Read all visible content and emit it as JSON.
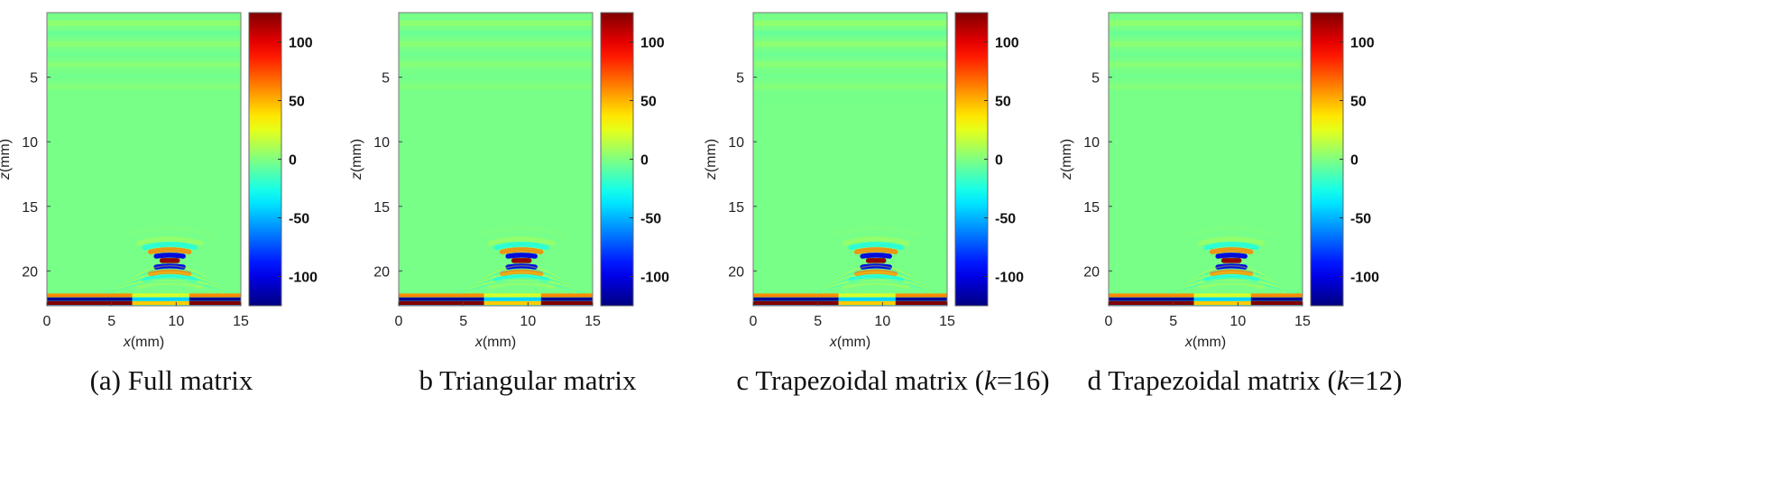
{
  "chart_data": [
    {
      "type": "heatmap",
      "caption": "(a) Full matrix",
      "xlabel": "x(mm)",
      "ylabel": "z(mm)",
      "xlim": [
        0,
        15
      ],
      "ylim": [
        0,
        22.7
      ],
      "x_ticks": [
        0,
        5,
        10,
        15
      ],
      "y_ticks": [
        5,
        10,
        15,
        20
      ],
      "colorbar": {
        "range": [
          -125,
          125
        ],
        "ticks": [
          100,
          50,
          0,
          -50,
          -100
        ],
        "colormap": "jet"
      },
      "features": {
        "defect_x": 9.5,
        "defect_z": 19.2,
        "backwall_z": 22.3,
        "noise_level": 1.0
      }
    },
    {
      "type": "heatmap",
      "caption": "b  Triangular matrix",
      "xlabel": "x(mm)",
      "ylabel": "z(mm)",
      "xlim": [
        0,
        15
      ],
      "ylim": [
        0,
        22.7
      ],
      "x_ticks": [
        0,
        5,
        10,
        15
      ],
      "y_ticks": [
        5,
        10,
        15,
        20
      ],
      "colorbar": {
        "range": [
          -125,
          125
        ],
        "ticks": [
          100,
          50,
          0,
          -50,
          -100
        ],
        "colormap": "jet"
      },
      "features": {
        "defect_x": 9.5,
        "defect_z": 19.2,
        "backwall_z": 22.3,
        "noise_level": 0.9
      }
    },
    {
      "type": "heatmap",
      "caption": "c  Trapezoidal matrix (k=16)",
      "xlabel": "x(mm)",
      "ylabel": "z(mm)",
      "xlim": [
        0,
        15
      ],
      "ylim": [
        0,
        22.7
      ],
      "x_ticks": [
        0,
        5,
        10,
        15
      ],
      "y_ticks": [
        5,
        10,
        15,
        20
      ],
      "colorbar": {
        "range": [
          -125,
          125
        ],
        "ticks": [
          100,
          50,
          0,
          -50,
          -100
        ],
        "colormap": "jet"
      },
      "features": {
        "defect_x": 9.5,
        "defect_z": 19.2,
        "backwall_z": 22.3,
        "noise_level": 1.1
      }
    },
    {
      "type": "heatmap",
      "caption": "d  Trapezoidal matrix (k=12)",
      "xlabel": "x(mm)",
      "ylabel": "z(mm)",
      "xlim": [
        0,
        15
      ],
      "ylim": [
        0,
        22.7
      ],
      "x_ticks": [
        0,
        5,
        10,
        15
      ],
      "y_ticks": [
        5,
        10,
        15,
        20
      ],
      "colorbar": {
        "range": [
          -125,
          125
        ],
        "ticks": [
          100,
          50,
          0,
          -50,
          -100
        ],
        "colormap": "jet"
      },
      "features": {
        "defect_x": 9.5,
        "defect_z": 19.2,
        "backwall_z": 22.3,
        "noise_level": 1.0
      }
    }
  ]
}
